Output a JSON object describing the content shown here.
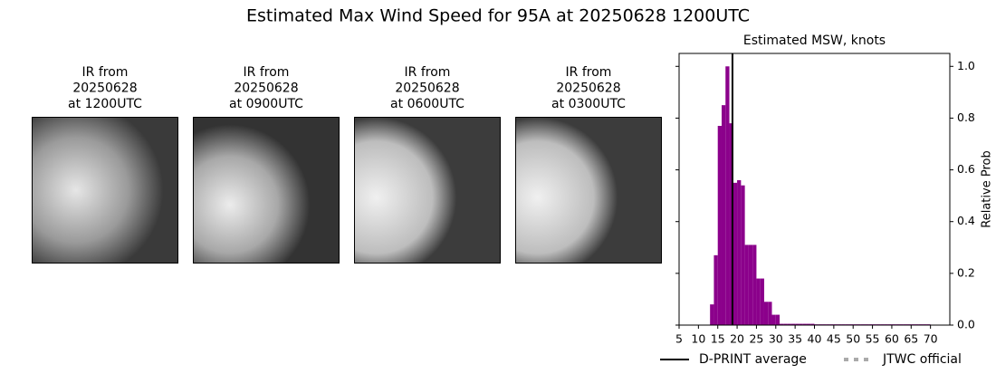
{
  "title": "Estimated Max Wind Speed for 95A at 20250628 1200UTC",
  "panels": [
    {
      "caption": [
        "IR from",
        "20250628",
        "at 1200UTC"
      ]
    },
    {
      "caption": [
        "IR from",
        "20250628",
        "at 0900UTC"
      ]
    },
    {
      "caption": [
        "IR from",
        "20250628",
        "at 0600UTC"
      ]
    },
    {
      "caption": [
        "IR from",
        "20250628",
        "at 0300UTC"
      ]
    }
  ],
  "chart_data": {
    "type": "histogram",
    "title": "Estimated MSW, knots",
    "ylabel": "Relative Prob",
    "bins": [
      13,
      14,
      15,
      16,
      17,
      18,
      19,
      20,
      21,
      22,
      23,
      24,
      25,
      26,
      27,
      28,
      29,
      30,
      31,
      32,
      33,
      34,
      35,
      36,
      37,
      38,
      39,
      40,
      41,
      42,
      43,
      44,
      45,
      46,
      47,
      48,
      49,
      50,
      51,
      52,
      53,
      54,
      55,
      56,
      57,
      58,
      59,
      60,
      61,
      62,
      63,
      64,
      65,
      66,
      67,
      68,
      69,
      70
    ],
    "counts": [
      0.08,
      0.27,
      0.77,
      0.85,
      1.0,
      0.78,
      0.55,
      0.56,
      0.54,
      0.31,
      0.31,
      0.31,
      0.18,
      0.18,
      0.09,
      0.09,
      0.04,
      0.04,
      0.005,
      0.005,
      0.005,
      0.005,
      0.005,
      0.005,
      0.005,
      0.005,
      0.005,
      0.003,
      0.003,
      0.003,
      0.003,
      0.003,
      0.003,
      0.003,
      0.003,
      0.003,
      0.003,
      0.003,
      0.003,
      0.003,
      0.003,
      0.003,
      0.003,
      0.003,
      0.003,
      0.003,
      0.003,
      0.003,
      0.003,
      0.003,
      0.003,
      0.003,
      0.003,
      0.003,
      0.003,
      0.003,
      0.003
    ],
    "color": "#8b008b",
    "xlim": [
      5,
      75
    ],
    "xticks": [
      5,
      10,
      15,
      20,
      25,
      30,
      35,
      40,
      45,
      50,
      55,
      60,
      65,
      70
    ],
    "ylim": [
      0,
      1.05
    ],
    "yticks": [
      {
        "value": 0,
        "label": "0.0"
      },
      0.2,
      0.4,
      0.6,
      0.8,
      {
        "value": 1,
        "label": "1.0"
      }
    ],
    "y_axis_side": "right",
    "lines": [
      {
        "name": "D-PRINT average",
        "x": 18.8,
        "color": "#000000",
        "style": "solid"
      },
      {
        "name": "JTWC official",
        "x": null,
        "color": "#aaaaaa",
        "style": "dotted"
      }
    ]
  }
}
